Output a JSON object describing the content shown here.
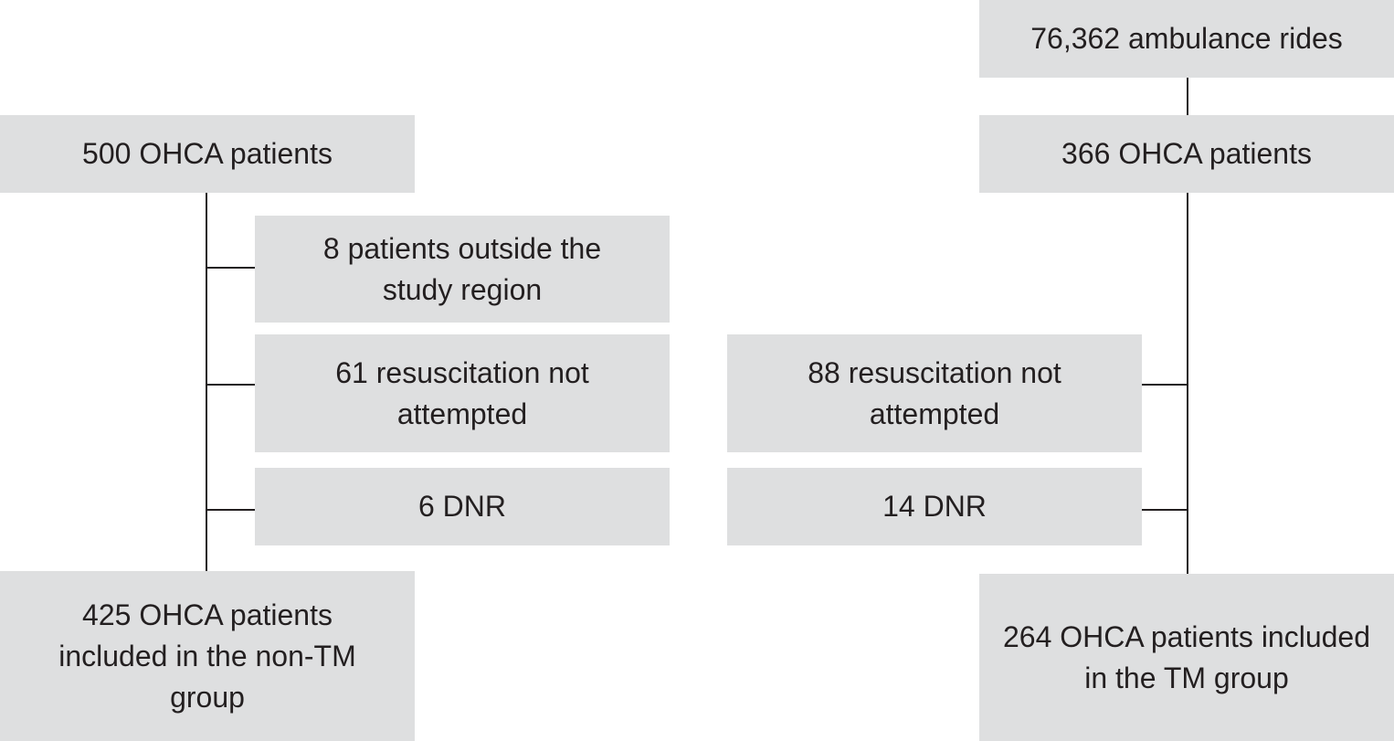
{
  "nodes": {
    "ambulance_rides": "76,362 ambulance rides",
    "left_total": "500 OHCA patients",
    "right_total": "366 OHCA patients",
    "left_outside_region": "8 patients outside the study region",
    "left_not_attempted": "61 resuscitation not attempted",
    "right_not_attempted": "88 resuscitation not attempted",
    "left_dnr": "6 DNR",
    "right_dnr": "14 DNR",
    "left_included": "425 OHCA patients included in the non-TM group",
    "right_included": "264 OHCA patients included in the TM group"
  },
  "colors": {
    "box_fill": "#dedfe0",
    "line": "#231f20",
    "text": "#231f20"
  }
}
